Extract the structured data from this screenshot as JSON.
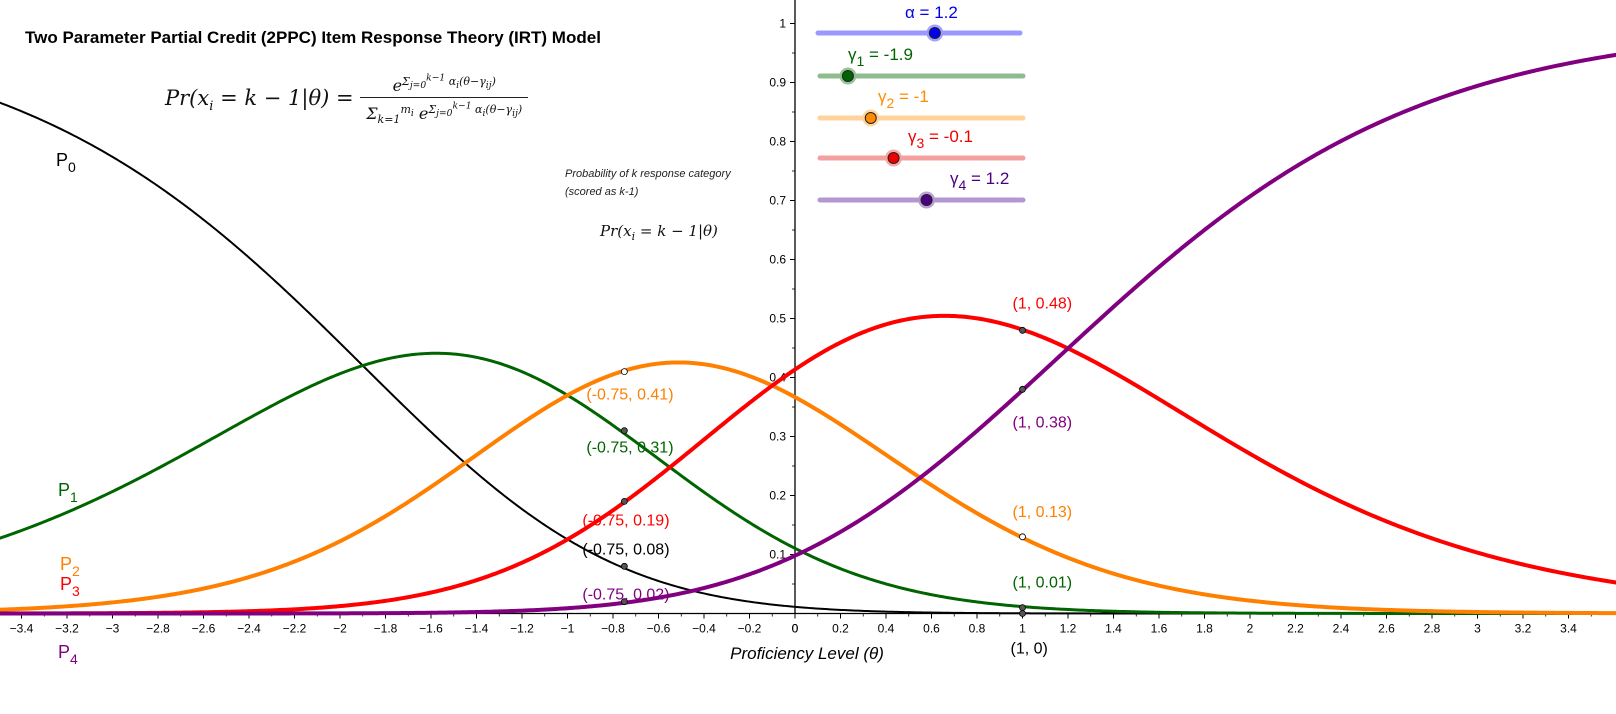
{
  "title": "Two Parameter Partial Credit (2PPC) Item Response Theory (IRT) Model",
  "formula": {
    "lhs": "Pr(x",
    "lhs_sub": "i",
    "lhs_rest": " = k − 1|θ) =",
    "numerator": "e^(Σ_{j=0}^{k−1} α_i(θ−γ_ij))",
    "denominator": "Σ_{k=1}^{m_i} e^(Σ_{j=0}^{k−1} α_i(θ−γ_ij))",
    "small": "Pr(x_i = k − 1|θ)"
  },
  "description": {
    "line1": "Probability of k response category",
    "line2": "(scored as k-1)"
  },
  "sliders": [
    {
      "name": "alpha",
      "symbol": "α",
      "sub": "",
      "value": 1.2,
      "color": "#0000ee",
      "track_color": "#9999ff",
      "text": " = 1.2"
    },
    {
      "name": "gamma1",
      "symbol": "γ",
      "sub": "1",
      "value": -1.9,
      "color": "#006400",
      "track_color": "#8fbc8f",
      "text": " = -1.9"
    },
    {
      "name": "gamma2",
      "symbol": "γ",
      "sub": "2",
      "value": -1,
      "color": "#ff8c00",
      "track_color": "#ffd39b",
      "text": " = -1"
    },
    {
      "name": "gamma3",
      "symbol": "γ",
      "sub": "3",
      "value": -0.1,
      "color": "#ee0000",
      "track_color": "#f4a0a0",
      "text": " = -0.1"
    },
    {
      "name": "gamma4",
      "symbol": "γ",
      "sub": "4",
      "value": 1.2,
      "color": "#4b0082",
      "track_color": "#b497d0",
      "text": " = 1.2"
    }
  ],
  "chart_data": {
    "type": "line",
    "xlabel": "Proficiency Level (θ)",
    "ylabel": "",
    "xlim": [
      -3.5,
      3.6
    ],
    "ylim": [
      0,
      1
    ],
    "x_ticks": [
      -3.4,
      -3.2,
      -3,
      -2.8,
      -2.6,
      -2.4,
      -2.2,
      -2,
      -1.8,
      -1.6,
      -1.4,
      -1.2,
      -1,
      -0.8,
      -0.6,
      -0.4,
      -0.2,
      0,
      0.2,
      0.4,
      0.6,
      0.8,
      1,
      1.2,
      1.4,
      1.6,
      1.8,
      2,
      2.2,
      2.4,
      2.6,
      2.8,
      3,
      3.2,
      3.4
    ],
    "y_ticks": [
      0.1,
      0.2,
      0.3,
      0.4,
      0.5,
      0.6,
      0.7,
      0.8,
      0.9,
      1
    ],
    "grid": false,
    "model": {
      "alpha": 1.2,
      "gammas": [
        -1.9,
        -1,
        -0.1,
        1.2
      ]
    },
    "series": [
      {
        "name": "P",
        "sub": "0",
        "color": "#000000",
        "width": 2,
        "label_points": [
          {
            "x": -0.75,
            "y": 0.08,
            "text": "(-0.75, 0.08)"
          },
          {
            "x": 1,
            "y": 0,
            "text": "(1, 0)"
          }
        ]
      },
      {
        "name": "P",
        "sub": "1",
        "color": "#006400",
        "width": 3,
        "label_points": [
          {
            "x": -0.75,
            "y": 0.31,
            "text": "(-0.75, 0.31)"
          },
          {
            "x": 1,
            "y": 0.01,
            "text": "(1, 0.01)"
          }
        ]
      },
      {
        "name": "P",
        "sub": "2",
        "color": "#ff8000",
        "width": 4,
        "label_points": [
          {
            "x": -0.75,
            "y": 0.41,
            "text": "(-0.75, 0.41)"
          },
          {
            "x": 1,
            "y": 0.13,
            "text": "(1, 0.13)"
          }
        ]
      },
      {
        "name": "P",
        "sub": "3",
        "color": "#ff0000",
        "width": 4,
        "label_points": [
          {
            "x": -0.75,
            "y": 0.19,
            "text": "(-0.75, 0.19)"
          },
          {
            "x": 1,
            "y": 0.48,
            "text": "(1, 0.48)"
          }
        ]
      },
      {
        "name": "P",
        "sub": "4",
        "color": "#800080",
        "width": 4,
        "label_points": [
          {
            "x": -0.75,
            "y": 0.02,
            "text": "(-0.75, 0.02)"
          },
          {
            "x": 1,
            "y": 0.38,
            "text": "(1, 0.38)"
          }
        ]
      }
    ]
  }
}
